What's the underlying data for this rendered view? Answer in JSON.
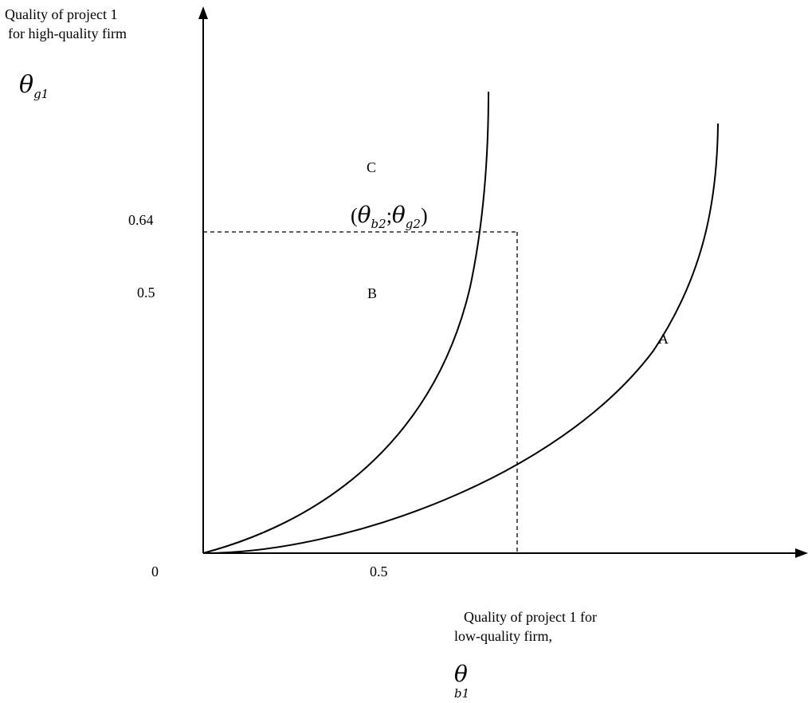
{
  "diagram": {
    "y_axis_label": {
      "line1": "Quality of project 1",
      "line2": "for high-quality firm",
      "symbol": "θ",
      "symbol_sub": "g1"
    },
    "x_axis_label": {
      "line1": "Quality of project 1 for",
      "line2": "low-quality firm,",
      "symbol": "θ",
      "symbol_sub": "b1"
    },
    "tick_labels": {
      "y_064": "0.64",
      "y_05": "0.5",
      "origin": "0",
      "x_05": "0.5"
    },
    "region_labels": {
      "a": "A",
      "b": "B",
      "c": "C"
    },
    "point_label": {
      "open": "(",
      "theta1": "θ",
      "sub1": "b2",
      "sep": ";",
      "theta2": "θ",
      "sub2": "g2",
      "close": ")"
    },
    "colors": {
      "line": "#000000",
      "background": "#ffffff"
    }
  }
}
